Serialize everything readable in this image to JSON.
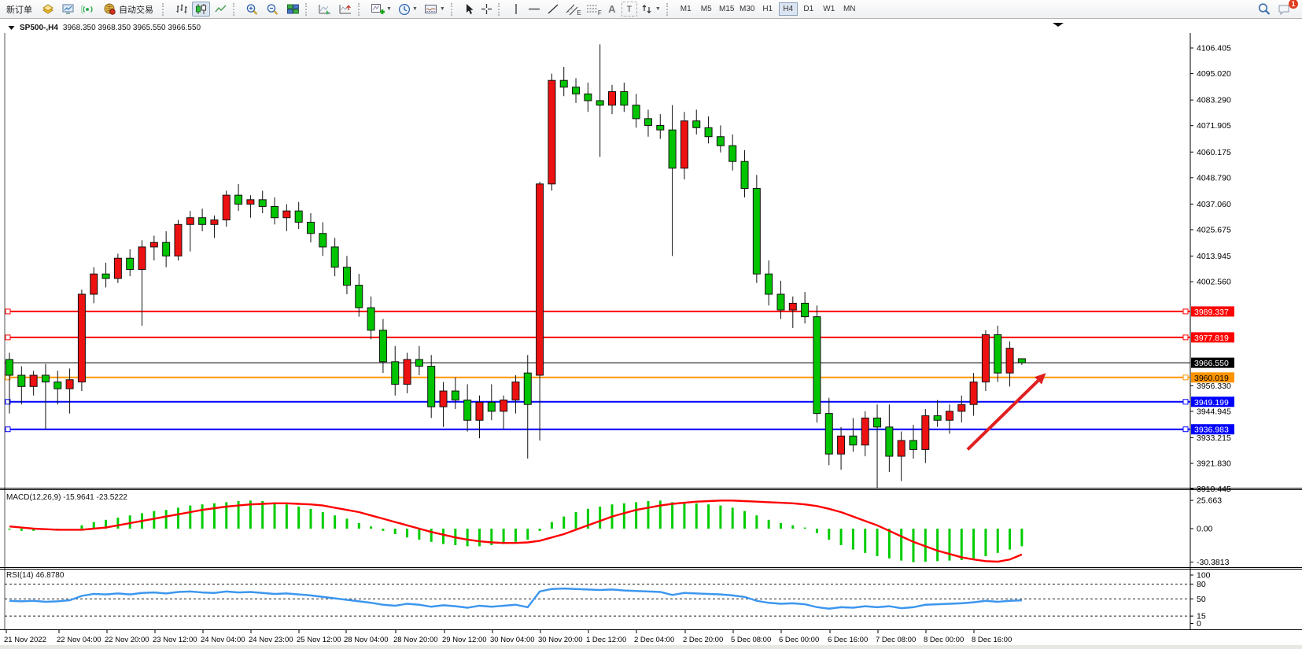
{
  "toolbar": {
    "new_order_label": "新订单",
    "autotrading_label": "自动交易",
    "tool_glyphs": {
      "text": "A",
      "label": "T",
      "channel": "E",
      "fibonacci": "F"
    },
    "timeframes": [
      "M1",
      "M5",
      "M15",
      "M30",
      "H1",
      "H4",
      "D1",
      "W1",
      "MN"
    ],
    "active_timeframe": "H4",
    "notification_badge": "1"
  },
  "chart": {
    "title_symbol": "SP500-,H4",
    "title_ohlc": "3968.350 3968.350 3965.550 3966.550"
  },
  "indicators": {
    "macd_label": "MACD(12,26,9)",
    "macd_values": "-15.9641 -23.5222",
    "rsi_label": "RSI(14)",
    "rsi_value": "46.8780"
  },
  "chart_data": {
    "type": "candlestick",
    "symbol": "SP500-",
    "period": "H4",
    "title": "SP500-,H4 3968.350 3968.350 3965.550 3966.550",
    "colors": {
      "bull": "#ee1111",
      "bear": "#00c400",
      "wick": "#111111",
      "line_red": "#ff0000",
      "line_orange": "#ff9400",
      "line_blue": "#0000ff",
      "line_black": "#000000",
      "macd_hist": "#00cc00",
      "macd_signal": "#ff0000",
      "rsi_line": "#3c96ee",
      "arrow": "#e02020"
    },
    "price_axis_ticks": [
      "4106.405",
      "4095.020",
      "4083.290",
      "4071.905",
      "4060.175",
      "4048.790",
      "4037.060",
      "4025.675",
      "4013.945",
      "4002.560",
      "3956.330",
      "3944.945",
      "3933.215",
      "3921.830",
      "3910.445"
    ],
    "horizontal_lines": [
      {
        "price": 3989.337,
        "label": "3989.337",
        "color": "#ff0000",
        "text_color": "#ffffff",
        "width": 2
      },
      {
        "price": 3977.819,
        "label": "3977.819",
        "color": "#ff0000",
        "text_color": "#ffffff",
        "width": 2
      },
      {
        "price": 3966.55,
        "label": "3966.550",
        "color": "#000000",
        "text_color": "#ffffff",
        "width": 1
      },
      {
        "price": 3960.019,
        "label": "3960.019",
        "color": "#ff9400",
        "text_color": "#000000",
        "width": 2
      },
      {
        "price": 3949.199,
        "label": "3949.199",
        "color": "#0000ff",
        "text_color": "#ffffff",
        "width": 2
      },
      {
        "price": 3936.983,
        "label": "3936.983",
        "color": "#0000ff",
        "text_color": "#ffffff",
        "width": 2
      }
    ],
    "time_labels": [
      "21 Nov 2022",
      "22 Nov 04:00",
      "22 Nov 20:00",
      "23 Nov 12:00",
      "24 Nov 04:00",
      "24 Nov 23:00",
      "25 Nov 12:00",
      "28 Nov 04:00",
      "28 Nov 20:00",
      "29 Nov 12:00",
      "30 Nov 04:00",
      "30 Nov 20:00",
      "1 Dec 12:00",
      "2 Dec 04:00",
      "2 Dec 20:00",
      "5 Dec 08:00",
      "6 Dec 00:00",
      "6 Dec 16:00",
      "7 Dec 08:00",
      "8 Dec 00:00",
      "8 Dec 16:00"
    ],
    "candles": [
      [
        3968,
        3971,
        3944,
        3961
      ],
      [
        3961,
        3965,
        3948,
        3956
      ],
      [
        3956,
        3963,
        3952,
        3961
      ],
      [
        3961,
        3966,
        3937,
        3958
      ],
      [
        3958,
        3963,
        3948,
        3955
      ],
      [
        3955,
        3964,
        3944,
        3959
      ],
      [
        3958,
        3999,
        3954,
        3997
      ],
      [
        3997,
        4009,
        3993,
        4006
      ],
      [
        4006,
        4011,
        4000,
        4004
      ],
      [
        4004,
        4015,
        4002,
        4013
      ],
      [
        4013,
        4017,
        4005,
        4008
      ],
      [
        4008,
        4021,
        3983,
        4018
      ],
      [
        4018,
        4023,
        4012,
        4020
      ],
      [
        4020,
        4025,
        4009,
        4014
      ],
      [
        4014,
        4030,
        4012,
        4028
      ],
      [
        4028,
        4034,
        4016,
        4031
      ],
      [
        4031,
        4035,
        4025,
        4028
      ],
      [
        4028,
        4032,
        4022,
        4030
      ],
      [
        4030,
        4043,
        4027,
        4041
      ],
      [
        4041,
        4046,
        4034,
        4037
      ],
      [
        4037,
        4041,
        4031,
        4039
      ],
      [
        4039,
        4043,
        4033,
        4036
      ],
      [
        4036,
        4040,
        4028,
        4031
      ],
      [
        4031,
        4037,
        4025,
        4034
      ],
      [
        4034,
        4038,
        4026,
        4029
      ],
      [
        4029,
        4033,
        4020,
        4024
      ],
      [
        4024,
        4029,
        4014,
        4018
      ],
      [
        4018,
        4022,
        4005,
        4009
      ],
      [
        4009,
        4014,
        3997,
        4001
      ],
      [
        4001,
        4006,
        3987,
        3991
      ],
      [
        3991,
        3996,
        3977,
        3981
      ],
      [
        3981,
        3986,
        3962,
        3967
      ],
      [
        3967,
        3974,
        3952,
        3957
      ],
      [
        3957,
        3971,
        3953,
        3968
      ],
      [
        3968,
        3974,
        3961,
        3965
      ],
      [
        3965,
        3970,
        3942,
        3947
      ],
      [
        3947,
        3958,
        3938,
        3954
      ],
      [
        3954,
        3960,
        3946,
        3950
      ],
      [
        3950,
        3957,
        3936,
        3941
      ],
      [
        3941,
        3952,
        3933,
        3949
      ],
      [
        3949,
        3957,
        3941,
        3945
      ],
      [
        3945,
        3952,
        3937,
        3950
      ],
      [
        3950,
        3961,
        3944,
        3958
      ],
      [
        3962,
        3970,
        3924,
        3948
      ],
      [
        3961,
        4047,
        3932,
        4046
      ],
      [
        4046,
        4095,
        4043,
        4092
      ],
      [
        4092,
        4098,
        4085,
        4089
      ],
      [
        4089,
        4093,
        4082,
        4086
      ],
      [
        4086,
        4091,
        4078,
        4083
      ],
      [
        4083,
        4108,
        4058,
        4081
      ],
      [
        4081,
        4090,
        4077,
        4087
      ],
      [
        4087,
        4091,
        4078,
        4081
      ],
      [
        4081,
        4086,
        4071,
        4075
      ],
      [
        4075,
        4079,
        4067,
        4072
      ],
      [
        4072,
        4077,
        4066,
        4070
      ],
      [
        4070,
        4081,
        4014,
        4053
      ],
      [
        4053,
        4078,
        4048,
        4074
      ],
      [
        4074,
        4079,
        4068,
        4071
      ],
      [
        4071,
        4076,
        4064,
        4067
      ],
      [
        4067,
        4072,
        4060,
        4063
      ],
      [
        4063,
        4068,
        4052,
        4056
      ],
      [
        4056,
        4061,
        4040,
        4044
      ],
      [
        4044,
        4050,
        4002,
        4006
      ],
      [
        4006,
        4012,
        3992,
        3997
      ],
      [
        3997,
        4003,
        3986,
        3990
      ],
      [
        3990,
        3996,
        3982,
        3993
      ],
      [
        3993,
        3998,
        3984,
        3987
      ],
      [
        3987,
        3992,
        3940,
        3944
      ],
      [
        3944,
        3951,
        3921,
        3926
      ],
      [
        3926,
        3938,
        3919,
        3934
      ],
      [
        3934,
        3942,
        3927,
        3930
      ],
      [
        3930,
        3945,
        3925,
        3942
      ],
      [
        3942,
        3948,
        3911,
        3938
      ],
      [
        3938,
        3948,
        3918,
        3925
      ],
      [
        3925,
        3936,
        3914,
        3932
      ],
      [
        3932,
        3939,
        3924,
        3928
      ],
      [
        3928,
        3946,
        3922,
        3943
      ],
      [
        3943,
        3950,
        3938,
        3941
      ],
      [
        3941,
        3948,
        3935,
        3945
      ],
      [
        3945,
        3952,
        3940,
        3948
      ],
      [
        3948,
        3962,
        3943,
        3958
      ],
      [
        3958,
        3981,
        3954,
        3979
      ],
      [
        3979,
        3983,
        3958,
        3962
      ],
      [
        3962,
        3976,
        3956,
        3973
      ],
      [
        3968.35,
        3968.35,
        3965.55,
        3966.55
      ]
    ],
    "macd": {
      "params": "12,26,9",
      "current_main": -15.9641,
      "current_signal": -23.5222,
      "scale_ticks": [
        "25.663",
        "0.00",
        "-30.3813"
      ],
      "histogram": [
        -1,
        -2,
        -2,
        -1,
        -1,
        0,
        3,
        6,
        8,
        10,
        12,
        14,
        16,
        17,
        19,
        21,
        22,
        23,
        24,
        25,
        25.5,
        25,
        24,
        22,
        20,
        18,
        15,
        12,
        9,
        5,
        2,
        -2,
        -5,
        -8,
        -10,
        -12,
        -14,
        -15,
        -16,
        -16,
        -15,
        -14,
        -12,
        -10,
        -2,
        6,
        11,
        15,
        18,
        20,
        22,
        23,
        24,
        25,
        25.5,
        24,
        24,
        23,
        22,
        21,
        19,
        16,
        12,
        8,
        5,
        3,
        1,
        -4,
        -10,
        -15,
        -19,
        -22,
        -25,
        -27,
        -29,
        -30.4,
        -30,
        -29.5,
        -29,
        -28.5,
        -27,
        -25,
        -22,
        -19,
        -16
      ],
      "signal": [
        2,
        1,
        0,
        -0.5,
        -1,
        -1,
        -1,
        0,
        1,
        3,
        5,
        7,
        9,
        11,
        13,
        15,
        17,
        18.5,
        20,
        21,
        22,
        22.5,
        23,
        23,
        22.5,
        22,
        21,
        19,
        17,
        15,
        12,
        9,
        6,
        3,
        0,
        -3,
        -5.5,
        -8,
        -10,
        -11.5,
        -12.5,
        -13,
        -13,
        -12.5,
        -11,
        -8,
        -5,
        -1,
        3,
        7,
        11,
        14,
        17,
        19,
        21,
        22.5,
        23.5,
        24.5,
        25,
        25.5,
        25.5,
        25,
        24.5,
        24,
        23.5,
        23,
        22,
        20.5,
        18,
        15,
        11,
        7,
        3,
        -2,
        -7,
        -12,
        -16,
        -20,
        -23,
        -26,
        -28,
        -29.5,
        -30,
        -28,
        -23.5
      ]
    },
    "rsi": {
      "period": 14,
      "current": 46.878,
      "levels": [
        80,
        50,
        15
      ],
      "scale_ticks": [
        "100",
        "80",
        "50",
        "15",
        "0"
      ],
      "values": [
        46,
        45,
        46,
        44,
        45,
        47,
        56,
        60,
        59,
        61,
        59,
        62,
        63,
        61,
        64,
        65,
        63,
        62,
        65,
        63,
        64,
        62,
        60,
        61,
        59,
        57,
        54,
        51,
        48,
        45,
        42,
        38,
        36,
        40,
        38,
        34,
        37,
        35,
        32,
        36,
        34,
        36,
        38,
        33,
        65,
        70,
        71,
        70,
        69,
        68,
        69,
        67,
        66,
        65,
        64,
        58,
        62,
        61,
        60,
        59,
        57,
        54,
        46,
        42,
        40,
        41,
        39,
        33,
        30,
        33,
        32,
        35,
        33,
        35,
        31,
        33,
        38,
        39,
        40,
        41,
        43,
        46,
        44,
        46,
        46.88
      ]
    },
    "annotations": [
      {
        "type": "arrow",
        "from_bar": 79.5,
        "from_price": 3928,
        "to_bar": 86,
        "to_price": 3962,
        "color": "#e02020"
      }
    ],
    "layout_hints": {
      "grid": false,
      "legend_position": "none",
      "y_range": [
        3910.445,
        4113
      ],
      "panels": [
        "price",
        "MACD",
        "RSI"
      ]
    }
  }
}
